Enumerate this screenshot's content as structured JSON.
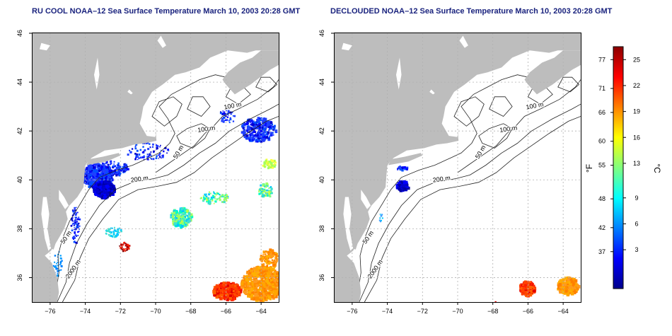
{
  "panels": [
    {
      "title": "RU COOL NOAA–12 Sea Surface Temperature March 10, 2003 20:28 GMT",
      "variant": "cool"
    },
    {
      "title": "DECLOUDED NOAA–12 Sea Surface Temperature March 10, 2003 20:28 GMT",
      "variant": "declouded"
    }
  ],
  "axes": {
    "lon_ticks": [
      "−76",
      "−74",
      "−72",
      "−70",
      "−68",
      "−66",
      "−64"
    ],
    "lat_ticks": [
      "36",
      "38",
      "40",
      "42",
      "44",
      "46"
    ],
    "lon_range": [
      -77,
      -63
    ],
    "lat_range": [
      35,
      46
    ],
    "grid": true
  },
  "contour_labels": [
    "100 m",
    "100 m",
    "50 m",
    "200 m",
    "50 m",
    "2000 m"
  ],
  "colorbar": {
    "fahrenheit_unit": "°F",
    "celsius_unit": "°C",
    "fahrenheit_ticks": [
      "77",
      "71",
      "66",
      "60",
      "55",
      "48",
      "42",
      "37"
    ],
    "celsius_ticks": [
      "25",
      "22",
      "19",
      "16",
      "13",
      "9",
      "6",
      "3"
    ],
    "colors": [
      "#00008b",
      "#0000ff",
      "#0080ff",
      "#00ffff",
      "#80ff80",
      "#ffff00",
      "#ff8000",
      "#ff0000",
      "#8b0000"
    ]
  },
  "colors": {
    "land": "#bdbdbd",
    "ocean": "#ffffff",
    "contour": "#222222",
    "grid": "#b0b0b0",
    "title": "#1a237e"
  }
}
